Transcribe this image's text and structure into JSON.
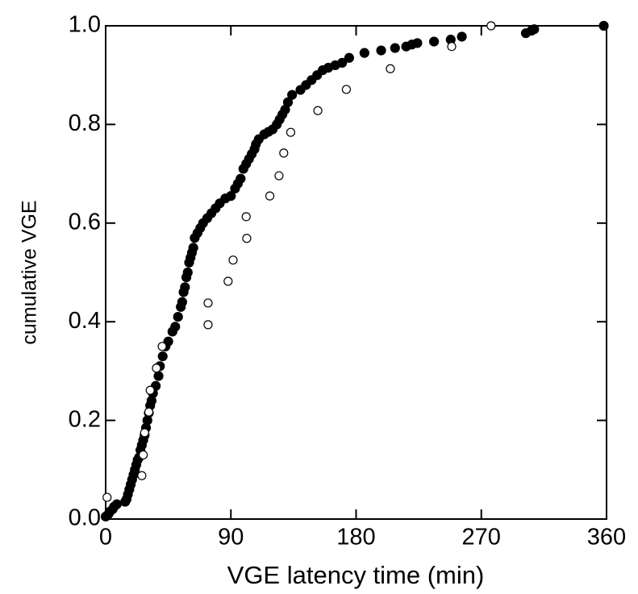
{
  "chart_data": {
    "type": "scatter",
    "xlabel": "VGE latency time (min)",
    "ylabel": "cumulative VGE",
    "xlim": [
      0,
      360
    ],
    "ylim": [
      0,
      1
    ],
    "xticks": [
      0,
      90,
      180,
      270,
      360
    ],
    "yticks": [
      {
        "value": 0,
        "label": "0.0"
      },
      0.2,
      0.4,
      0.6,
      0.8,
      {
        "value": 1,
        "label": "1.0"
      }
    ],
    "grid": false,
    "series": [
      {
        "color": "#000000",
        "marker": "filled",
        "x": [
          0,
          2,
          3,
          5,
          6,
          8,
          14,
          15,
          16,
          17,
          18,
          19,
          20,
          21,
          22,
          23,
          24,
          25,
          26,
          27,
          28,
          29,
          30,
          31,
          32,
          33,
          34,
          36,
          38,
          39,
          41,
          43,
          45,
          48,
          50,
          52,
          54,
          55,
          56,
          57,
          58,
          59,
          60,
          61,
          62,
          63,
          64,
          66,
          68,
          70,
          73,
          76,
          79,
          82,
          86,
          90,
          93,
          95,
          97,
          99,
          101,
          103,
          105,
          107,
          108,
          110,
          114,
          117,
          120,
          123,
          125,
          127,
          129,
          131,
          134,
          140,
          144,
          148,
          152,
          156,
          160,
          165,
          170,
          175,
          186,
          198,
          208,
          216,
          220,
          224,
          236,
          248,
          256,
          302,
          306,
          308,
          358
        ],
        "values": [
          0.005,
          0.01,
          0.015,
          0.02,
          0.025,
          0.03,
          0.035,
          0.04,
          0.05,
          0.06,
          0.07,
          0.08,
          0.09,
          0.1,
          0.11,
          0.12,
          0.125,
          0.14,
          0.15,
          0.16,
          0.17,
          0.185,
          0.2,
          0.215,
          0.23,
          0.24,
          0.255,
          0.27,
          0.29,
          0.31,
          0.33,
          0.35,
          0.36,
          0.38,
          0.39,
          0.41,
          0.43,
          0.44,
          0.46,
          0.47,
          0.49,
          0.5,
          0.52,
          0.53,
          0.54,
          0.55,
          0.57,
          0.58,
          0.59,
          0.6,
          0.61,
          0.62,
          0.63,
          0.64,
          0.65,
          0.655,
          0.67,
          0.68,
          0.69,
          0.71,
          0.72,
          0.73,
          0.74,
          0.75,
          0.76,
          0.77,
          0.78,
          0.785,
          0.79,
          0.8,
          0.81,
          0.82,
          0.83,
          0.845,
          0.86,
          0.87,
          0.88,
          0.89,
          0.9,
          0.91,
          0.915,
          0.92,
          0.925,
          0.935,
          0.945,
          0.95,
          0.955,
          0.958,
          0.962,
          0.965,
          0.968,
          0.972,
          0.978,
          0.985,
          0.99,
          0.993,
          1.0
        ]
      },
      {
        "color": "#000000",
        "marker": "open",
        "x": [
          1,
          26,
          27,
          28,
          31,
          32,
          36.5,
          40.6,
          73.6,
          73.6,
          88,
          91.6,
          101.4,
          101,
          118,
          124.6,
          128,
          133,
          152.5,
          173,
          204.6,
          248.7,
          277
        ],
        "values": [
          0.044,
          0.088,
          0.13,
          0.175,
          0.217,
          0.261,
          0.306,
          0.35,
          0.394,
          0.438,
          0.482,
          0.525,
          0.569,
          0.613,
          0.655,
          0.696,
          0.742,
          0.784,
          0.828,
          0.871,
          0.913,
          0.958,
          1.0
        ]
      }
    ]
  }
}
